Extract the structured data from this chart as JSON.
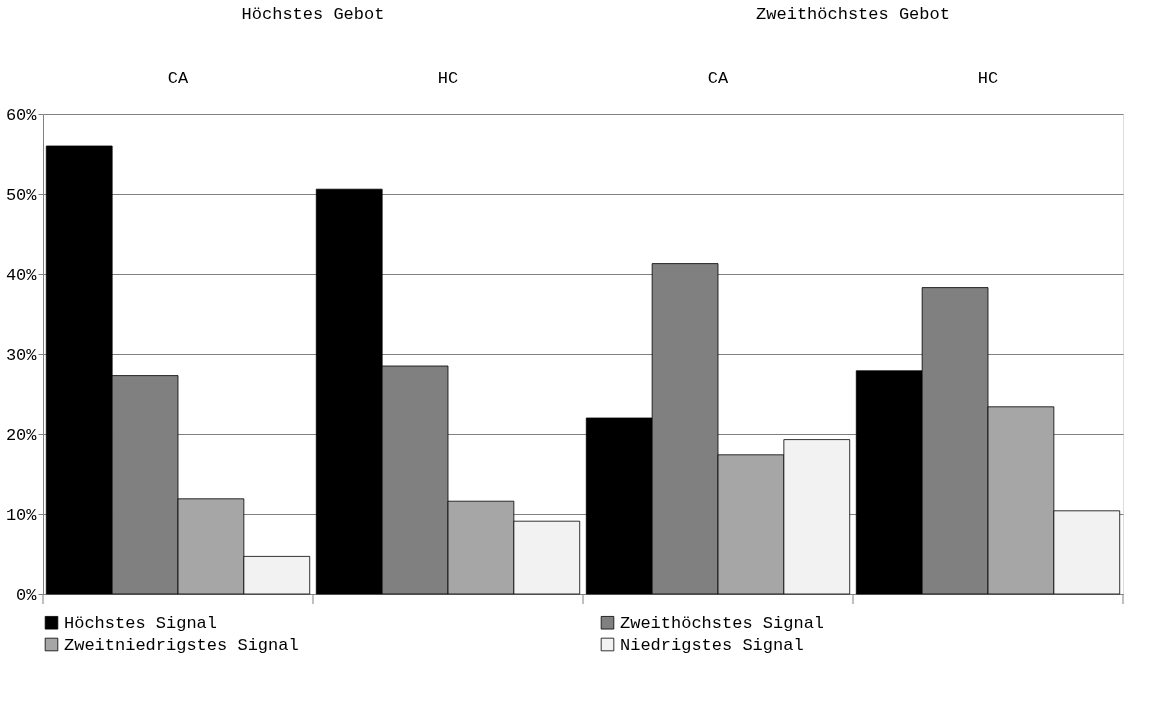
{
  "chart_data": {
    "type": "bar",
    "categories": [
      "CA",
      "HC",
      "CA",
      "HC"
    ],
    "annotations": [
      "Höchstes Gebot",
      "Zweithöchstes Gebot"
    ],
    "series": [
      {
        "name": "Höchstes Signal",
        "color": "#000000",
        "values": [
          56,
          50.6,
          22,
          27.9
        ]
      },
      {
        "name": "Zweithöchstes Signal",
        "color": "#808080",
        "values": [
          27.3,
          28.5,
          41.3,
          38.3
        ]
      },
      {
        "name": "Zweitniedrigstes Signal",
        "color": "#a6a6a6",
        "values": [
          11.9,
          11.6,
          17.4,
          23.4
        ]
      },
      {
        "name": "Niedrigstes Signal",
        "color": "#f2f2f2",
        "values": [
          4.7,
          9.1,
          19.3,
          10.4
        ]
      }
    ],
    "ylim": [
      0,
      60
    ],
    "yticks": [
      {
        "value": 0,
        "label": "0%"
      },
      {
        "value": 10,
        "label": "10%"
      },
      {
        "value": 20,
        "label": "20%"
      },
      {
        "value": 30,
        "label": "30%"
      },
      {
        "value": 40,
        "label": "40%"
      },
      {
        "value": 50,
        "label": "50%"
      },
      {
        "value": 60,
        "label": "60%"
      }
    ],
    "grid": "y",
    "legend": "bottom"
  }
}
